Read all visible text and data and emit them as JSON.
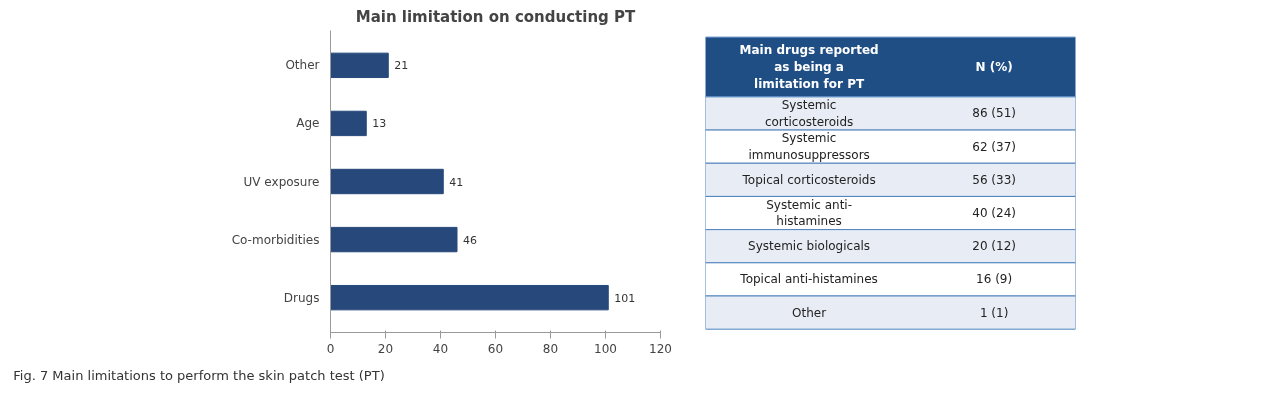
{
  "chart_data": [
    {
      "type": "bar",
      "orientation": "horizontal",
      "title": "Main limitation on conducting PT",
      "categories": [
        "Other",
        "Age",
        "UV exposure",
        "Co-morbidities",
        "Drugs"
      ],
      "values": [
        21,
        13,
        41,
        46,
        101
      ],
      "color": "#27487a",
      "xlim": [
        0,
        120
      ],
      "xticks": [
        0,
        20,
        40,
        60,
        80,
        100,
        120
      ],
      "grid": false,
      "data_labels": true,
      "annotations": [
        "Fig. 7 Main limitations to perform the skin patch test (PT)"
      ]
    },
    {
      "type": "other",
      "title": "Main drugs reported as being a limitation for PT",
      "categories": [
        "Systemic corticosteroids",
        "Systemic immunosuppressors",
        "Topical corticosteroids",
        "Systemic anti-histamines",
        "Systemic biologicals",
        "Topical anti-histamines",
        "Other"
      ],
      "value_labels": [
        "86 (51)",
        "62 (37)",
        "56 (33)",
        "40 (24)",
        "20 (12)",
        "16 (9)",
        "1 (1)"
      ],
      "annotations": [
        "N (%)"
      ]
    }
  ]
}
